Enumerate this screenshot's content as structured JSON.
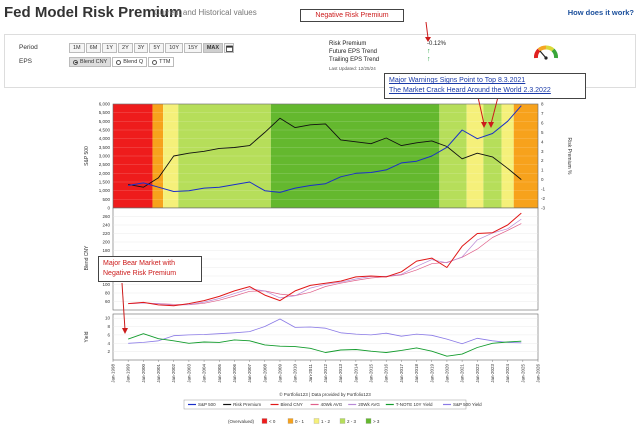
{
  "header": {
    "title": "Fed Model Risk Premium",
    "subtitle": "Current and Historical values",
    "help_link": "How does it work?"
  },
  "controls": {
    "period_label": "Period",
    "periods": [
      "1M",
      "6M",
      "1Y",
      "2Y",
      "3Y",
      "5Y",
      "10Y",
      "15Y",
      "MAX"
    ],
    "active_period": "MAX",
    "eps_label": "EPS",
    "eps_options": [
      "Blend CNY",
      "Blend Q",
      "TTM"
    ],
    "active_eps": "Blend CNY"
  },
  "metrics": {
    "risk_premium_label": "Risk Premium",
    "risk_premium_value": "-0.12%",
    "future_eps_label": "Future EPS Trend",
    "trailing_eps_label": "Trailing EPS Trend",
    "updated": "Last Updated: 12/25/24"
  },
  "callouts": {
    "negative_premium": "Negative Risk Premium",
    "warnings_link": "Major Warnings Signs Point to Top 8.3.2021",
    "crack_link": "The Market Crack Heard Around the World 2.3.2022",
    "bear_market": "Major Bear Market with Negative Risk Premium"
  },
  "footer": {
    "credit": "© Portfolio123 | Data provided by Portfolio123"
  },
  "colors": {
    "sp500": "#1a2fc9",
    "risk_premium": "#111111",
    "blend_cny": "#e01818",
    "avg40": "#e0608a",
    "avg20": "#b98ad6",
    "tnote": "#149c2e",
    "sp500_yield": "#8a7ae6",
    "band_red": "#ee1c1c",
    "band_orange": "#f7a21c",
    "band_yellow": "#f5f07a",
    "band_lightgreen": "#b6de5a",
    "band_green": "#64b82e",
    "annotation_red": "#cc1b1b"
  },
  "chart_data": [
    {
      "type": "line",
      "x": [
        1999,
        2000,
        2001,
        2002,
        2003,
        2004,
        2005,
        2006,
        2007,
        2008,
        2009,
        2010,
        2011,
        2012,
        2013,
        2014,
        2015,
        2016,
        2017,
        2018,
        2019,
        2020,
        2021,
        2022,
        2023,
        2024,
        2024.9
      ],
      "series": [
        {
          "name": "S&P 500",
          "values": [
            1300,
            1450,
            1200,
            950,
            1000,
            1150,
            1200,
            1350,
            1500,
            1000,
            900,
            1150,
            1300,
            1400,
            1800,
            2000,
            2050,
            2200,
            2600,
            2700,
            3000,
            3500,
            4500,
            4000,
            4300,
            5000,
            5900
          ]
        },
        {
          "name": "Risk Premium",
          "values": [
            -0.5,
            -0.8,
            0.2,
            2.5,
            2.8,
            3.0,
            3.3,
            3.4,
            3.6,
            5.0,
            6.5,
            5.5,
            5.8,
            5.9,
            4.2,
            4.0,
            3.8,
            4.4,
            3.6,
            3.9,
            4.1,
            3.5,
            2.2,
            2.8,
            2.4,
            1.2,
            0.0
          ]
        }
      ],
      "xlim": [
        1998,
        2026
      ],
      "ylim_left": [
        0,
        6000
      ],
      "ylim_right": [
        -3,
        8
      ],
      "yticks_left": [
        "0",
        "500",
        "1,000",
        "1,500",
        "2,000",
        "2,500",
        "3,000",
        "3,500",
        "4,000",
        "4,500",
        "5,000",
        "5,500",
        "6,000"
      ],
      "yticks_right": [
        "-3",
        "-2",
        "-1",
        "0",
        "1",
        "2",
        "3",
        "4",
        "5",
        "6",
        "7",
        "8"
      ],
      "ylabel_left": "S&P 500",
      "ylabel_right": "Risk Premium %",
      "background_bands": [
        {
          "start": 1998,
          "end": 2000.6,
          "color": "band_red"
        },
        {
          "start": 2000.6,
          "end": 2001.3,
          "color": "band_orange"
        },
        {
          "start": 2001.3,
          "end": 2002.3,
          "color": "band_yellow"
        },
        {
          "start": 2002.3,
          "end": 2008.4,
          "color": "band_lightgreen"
        },
        {
          "start": 2008.4,
          "end": 2019.5,
          "color": "band_green"
        },
        {
          "start": 2019.5,
          "end": 2021.3,
          "color": "band_lightgreen"
        },
        {
          "start": 2021.3,
          "end": 2022.4,
          "color": "band_yellow"
        },
        {
          "start": 2022.4,
          "end": 2023.6,
          "color": "band_lightgreen"
        },
        {
          "start": 2023.6,
          "end": 2024.4,
          "color": "band_yellow"
        },
        {
          "start": 2024.4,
          "end": 2026,
          "color": "band_orange"
        }
      ]
    },
    {
      "type": "line",
      "x": [
        1999,
        2000,
        2001,
        2002,
        2003,
        2004,
        2005,
        2006,
        2007,
        2008,
        2009,
        2010,
        2011,
        2012,
        2013,
        2014,
        2015,
        2016,
        2017,
        2018,
        2019,
        2020,
        2021,
        2022,
        2023,
        2024,
        2024.9
      ],
      "series": [
        {
          "name": "Blend CNY",
          "values": [
            55,
            58,
            52,
            50,
            55,
            62,
            72,
            85,
            95,
            75,
            62,
            85,
            98,
            103,
            108,
            118,
            120,
            118,
            130,
            155,
            162,
            140,
            190,
            220,
            222,
            240,
            268
          ]
        }
      ],
      "ylim": [
        40,
        280
      ],
      "yticks": [
        "60",
        "80",
        "100",
        "120",
        "140",
        "160",
        "180",
        "200",
        "220",
        "240",
        "260"
      ],
      "ylabel": "Blend CNY"
    },
    {
      "type": "line",
      "x": [
        1999,
        2000,
        2001,
        2002,
        2003,
        2004,
        2005,
        2006,
        2007,
        2008,
        2009,
        2010,
        2011,
        2012,
        2013,
        2014,
        2015,
        2016,
        2017,
        2018,
        2019,
        2020,
        2021,
        2022,
        2023,
        2024,
        2024.9
      ],
      "series": [
        {
          "name": "T-NOTE 10Y Yield",
          "values": [
            5.0,
            6.3,
            5.1,
            4.6,
            4.0,
            4.3,
            4.2,
            4.8,
            4.6,
            3.6,
            3.3,
            3.2,
            2.8,
            1.8,
            2.4,
            2.5,
            2.1,
            1.8,
            2.3,
            2.9,
            2.1,
            0.9,
            1.4,
            3.0,
            4.0,
            4.3,
            4.5
          ]
        },
        {
          "name": "S&P 500 Yield",
          "values": [
            4.0,
            4.2,
            4.6,
            5.8,
            6.0,
            6.1,
            6.3,
            6.5,
            6.8,
            8.0,
            9.8,
            7.8,
            7.9,
            7.6,
            6.5,
            6.2,
            6.0,
            6.4,
            5.7,
            6.2,
            5.9,
            5.0,
            3.9,
            5.2,
            4.6,
            4.2,
            4.1
          ]
        }
      ],
      "ylim": [
        0,
        11
      ],
      "yticks": [
        "2",
        "4",
        "6",
        "8",
        "10"
      ],
      "ylabel": "Yield",
      "xticks": [
        "Jan-1998",
        "Jan-1999",
        "Jan-2000",
        "Jan-2001",
        "Jan-2002",
        "Jan-2003",
        "Jan-2004",
        "Jan-2005",
        "Jan-2006",
        "Jan-2007",
        "Jan-2008",
        "Jan-2009",
        "Jan-2010",
        "Jan-2011",
        "Jan-2012",
        "Jan-2013",
        "Jan-2014",
        "Jan-2015",
        "Jan-2016",
        "Jan-2017",
        "Jan-2018",
        "Jan-2019",
        "Jan-2020",
        "Jan-2021",
        "Jan-2022",
        "Jan-2023",
        "Jan-2024",
        "Jan-2025",
        "Jan-2026"
      ]
    }
  ],
  "legend": [
    {
      "name": "S&P 500",
      "color": "sp500"
    },
    {
      "name": "Risk Premium",
      "color": "risk_premium"
    },
    {
      "name": "Blend CNY",
      "color": "blend_cny"
    },
    {
      "name": "40Wk AVG",
      "color": "avg40"
    },
    {
      "name": "20Wk AVG",
      "color": "avg20"
    },
    {
      "name": "T-NOTE 10Y Yield",
      "color": "tnote"
    },
    {
      "name": "S&P 500 Yield",
      "color": "sp500_yield"
    }
  ],
  "overvalued_legend": {
    "label": "(Overvalued)",
    "items": [
      {
        "label": "< 0",
        "color": "band_red"
      },
      {
        "label": "0 - 1",
        "color": "band_orange"
      },
      {
        "label": "1 - 2",
        "color": "band_yellow"
      },
      {
        "label": "2 - 3",
        "color": "band_lightgreen"
      },
      {
        "label": "> 3",
        "color": "band_green"
      }
    ]
  }
}
